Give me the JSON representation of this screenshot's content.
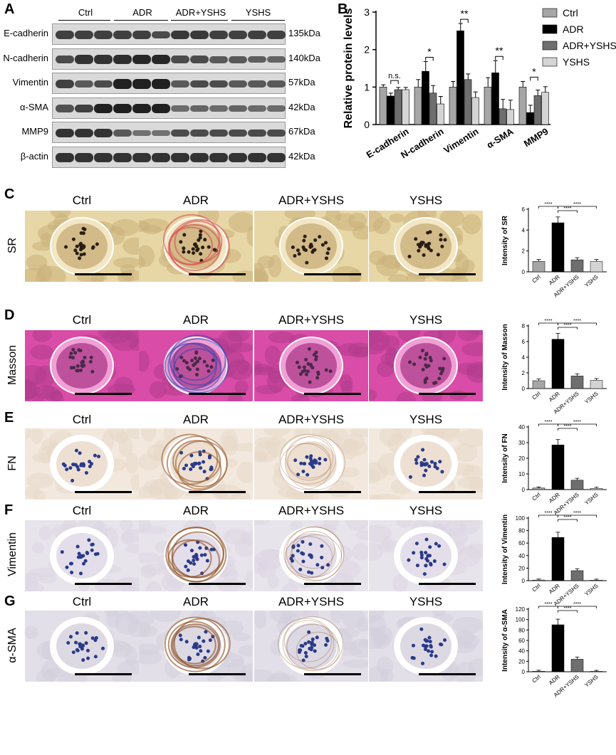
{
  "panels": {
    "A": "A",
    "B": "B",
    "C": "C",
    "D": "D",
    "E": "E",
    "F": "F",
    "G": "G"
  },
  "western_blot": {
    "groups": [
      "Ctrl",
      "ADR",
      "ADR+YSHS",
      "YSHS"
    ],
    "rows": [
      {
        "protein": "E-cadherin",
        "kda": "135kDa"
      },
      {
        "protein": "N-cadherin",
        "kda": "140kDa"
      },
      {
        "protein": "Vimentin",
        "kda": "57kDa"
      },
      {
        "protein": "α-SMA",
        "kda": "42kDa"
      },
      {
        "protein": "MMP9",
        "kda": "67kDa"
      },
      {
        "protein": "β-actin",
        "kda": "42kDa"
      }
    ]
  },
  "histology": {
    "columns": [
      "Ctrl",
      "ADR",
      "ADR+YSHS",
      "YSHS"
    ],
    "stains": [
      "SR",
      "Masson",
      "FN",
      "Vimentin",
      "α-SMA"
    ]
  },
  "colors": {
    "ctrl": "#a6a6a6",
    "adr": "#000000",
    "adr_yshs": "#6e6e6e",
    "yshs": "#d4d4d4"
  },
  "chart_data": [
    {
      "type": "bar",
      "ylabel": "Relative protein levels",
      "ylim": [
        0,
        3
      ],
      "yticks": [
        "0",
        "1",
        "2",
        "3"
      ],
      "categories": [
        "E-cadherin",
        "N-cadherin",
        "Vimentin",
        "α-SMA",
        "MMP9"
      ],
      "legend": [
        "Ctrl",
        "ADR",
        "ADR+YSHS",
        "YSHS"
      ],
      "series": [
        {
          "name": "Ctrl",
          "values": [
            1.0,
            1.0,
            1.0,
            1.0,
            1.0
          ]
        },
        {
          "name": "ADR",
          "values": [
            0.76,
            1.42,
            2.5,
            1.38,
            0.32
          ]
        },
        {
          "name": "ADR+YSHS",
          "values": [
            0.93,
            0.84,
            1.2,
            0.42,
            0.77
          ]
        },
        {
          "name": "YSHS",
          "values": [
            0.93,
            0.55,
            0.72,
            0.4,
            0.86
          ]
        }
      ],
      "annotations": [
        "n.s.",
        "*",
        "**",
        "**",
        "*"
      ]
    },
    {
      "type": "bar",
      "ylabel": "Intensity of SR",
      "ylim": [
        0,
        6
      ],
      "yticks": [
        "0",
        "2",
        "4",
        "6"
      ],
      "categories": [
        "Ctrl",
        "ADR",
        "ADR+YSHS",
        "YSHS"
      ],
      "values": [
        1.0,
        4.7,
        1.15,
        1.0
      ],
      "annotations": [
        "****",
        "****",
        "****"
      ]
    },
    {
      "type": "bar",
      "ylabel": "Intensity of Masson",
      "ylim": [
        0,
        8
      ],
      "yticks": [
        "0",
        "2",
        "4",
        "6",
        "8"
      ],
      "categories": [
        "Ctrl",
        "ADR",
        "ADR+YSHS",
        "YSHS"
      ],
      "values": [
        1.0,
        6.3,
        1.6,
        1.05
      ],
      "annotations": [
        "****",
        "****",
        "****"
      ]
    },
    {
      "type": "bar",
      "ylabel": "Intensity of FN",
      "ylim": [
        0,
        40
      ],
      "yticks": [
        "0",
        "10",
        "20",
        "30",
        "40"
      ],
      "categories": [
        "Ctrl",
        "ADR",
        "ADR+YSHS",
        "YSHS"
      ],
      "values": [
        1.0,
        28.5,
        6.0,
        0.8
      ],
      "annotations": [
        "****",
        "****",
        "****"
      ]
    },
    {
      "type": "bar",
      "ylabel": "Intensity of Vimentin",
      "ylim": [
        0,
        100
      ],
      "yticks": [
        "0",
        "20",
        "40",
        "60",
        "80",
        "100"
      ],
      "categories": [
        "Ctrl",
        "ADR",
        "ADR+YSHS",
        "YSHS"
      ],
      "values": [
        1.0,
        69.0,
        16.0,
        0.8
      ],
      "annotations": [
        "****",
        "****",
        "****"
      ]
    },
    {
      "type": "bar",
      "ylabel": "Intensity of α-SMA",
      "ylim": [
        0,
        120
      ],
      "yticks": [
        "0",
        "20",
        "40",
        "60",
        "80",
        "100",
        "120"
      ],
      "categories": [
        "Ctrl",
        "ADR",
        "ADR+YSHS",
        "YSHS"
      ],
      "values": [
        1.0,
        90.0,
        24.0,
        0.8
      ],
      "annotations": [
        "****",
        "****",
        "****"
      ]
    }
  ]
}
